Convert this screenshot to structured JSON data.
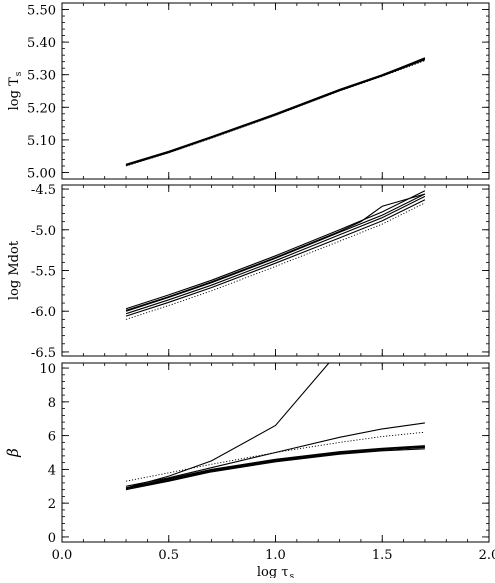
{
  "chart_data": [
    {
      "type": "line",
      "ylabel": "log T",
      "ylabel_sub": "s",
      "xlim": [
        0.0,
        2.0
      ],
      "ylim": [
        4.98,
        5.52
      ],
      "yticks": [
        5.0,
        5.1,
        5.2,
        5.3,
        5.4,
        5.5
      ],
      "ytick_labels": [
        "5.00",
        "5.10",
        "5.20",
        "5.30",
        "5.40",
        "5.50"
      ],
      "series": [
        {
          "style": "solid",
          "x": [
            0.3,
            0.5,
            0.7,
            1.0,
            1.3,
            1.5,
            1.7
          ],
          "y": [
            5.025,
            5.065,
            5.11,
            5.18,
            5.255,
            5.3,
            5.35
          ]
        },
        {
          "style": "solid",
          "x": [
            0.3,
            0.5,
            0.7,
            1.0,
            1.3,
            1.5,
            1.7
          ],
          "y": [
            5.023,
            5.063,
            5.108,
            5.178,
            5.253,
            5.298,
            5.348
          ]
        },
        {
          "style": "solid",
          "x": [
            0.3,
            0.5,
            0.7,
            1.0,
            1.3,
            1.5,
            1.7
          ],
          "y": [
            5.021,
            5.061,
            5.106,
            5.176,
            5.251,
            5.296,
            5.346
          ]
        },
        {
          "style": "solid",
          "x": [
            0.3,
            0.5,
            0.7,
            1.0,
            1.3,
            1.5,
            1.7
          ],
          "y": [
            5.024,
            5.064,
            5.109,
            5.179,
            5.254,
            5.299,
            5.352
          ]
        },
        {
          "style": "dotted",
          "x": [
            0.3,
            0.5,
            0.7,
            1.0,
            1.3,
            1.5,
            1.7
          ],
          "y": [
            5.02,
            5.06,
            5.105,
            5.175,
            5.25,
            5.295,
            5.343
          ]
        }
      ]
    },
    {
      "type": "line",
      "ylabel": "log Mdot",
      "xlim": [
        0.0,
        2.0
      ],
      "ylim": [
        -6.55,
        -4.45
      ],
      "yticks": [
        -6.5,
        -6.0,
        -5.5,
        -5.0,
        -4.5
      ],
      "ytick_labels": [
        "-6.5",
        "-6.0",
        "-5.5",
        "-5.0",
        "-4.5"
      ],
      "series": [
        {
          "style": "solid",
          "x": [
            0.3,
            0.5,
            0.7,
            1.0,
            1.3,
            1.5,
            1.7
          ],
          "y": [
            -5.97,
            -5.8,
            -5.62,
            -5.32,
            -5.0,
            -4.78,
            -4.52
          ]
        },
        {
          "style": "solid",
          "x": [
            0.3,
            0.5,
            0.7,
            1.0,
            1.3,
            1.5,
            1.7
          ],
          "y": [
            -6.0,
            -5.83,
            -5.65,
            -5.35,
            -5.03,
            -4.82,
            -4.56
          ]
        },
        {
          "style": "solid",
          "x": [
            0.3,
            0.5,
            0.7,
            1.0,
            1.3,
            1.5,
            1.7
          ],
          "y": [
            -6.03,
            -5.86,
            -5.68,
            -5.38,
            -5.06,
            -4.85,
            -4.59
          ]
        },
        {
          "style": "solid",
          "x": [
            0.3,
            0.5,
            0.7,
            1.0,
            1.3,
            1.5,
            1.7
          ],
          "y": [
            -6.06,
            -5.89,
            -5.71,
            -5.41,
            -5.1,
            -4.89,
            -4.63
          ]
        },
        {
          "style": "solid",
          "x": [
            0.3,
            0.5,
            0.7,
            1.0,
            1.3,
            1.4,
            1.5,
            1.7
          ],
          "y": [
            -5.99,
            -5.82,
            -5.64,
            -5.34,
            -5.02,
            -4.9,
            -4.71,
            -4.56
          ]
        },
        {
          "style": "dotted",
          "x": [
            0.3,
            0.5,
            0.7,
            1.0,
            1.3,
            1.5,
            1.7
          ],
          "y": [
            -6.1,
            -5.93,
            -5.75,
            -5.45,
            -5.14,
            -4.93,
            -4.67
          ]
        }
      ]
    },
    {
      "type": "line",
      "ylabel": "β",
      "xlabel": "log  τ",
      "xlabel_sub": "s",
      "xlim": [
        0.0,
        2.0
      ],
      "ylim": [
        -0.3,
        10.3
      ],
      "yticks": [
        0,
        2,
        4,
        6,
        8,
        10
      ],
      "ytick_labels": [
        "0",
        "2",
        "4",
        "6",
        "8",
        "10"
      ],
      "xticks": [
        0.0,
        0.5,
        1.0,
        1.5,
        2.0
      ],
      "xtick_labels": [
        "0.0",
        "0.5",
        "1.0",
        "1.5",
        "2.0"
      ],
      "series": [
        {
          "style": "solid",
          "x": [
            0.3,
            0.5,
            0.7,
            1.0,
            1.25
          ],
          "y": [
            2.9,
            3.6,
            4.5,
            6.6,
            10.3
          ]
        },
        {
          "style": "solid",
          "x": [
            0.3,
            0.5,
            0.7,
            1.0,
            1.3,
            1.5,
            1.7
          ],
          "y": [
            3.0,
            3.5,
            4.1,
            5.0,
            5.9,
            6.4,
            6.75
          ]
        },
        {
          "style": "dotted",
          "x": [
            0.3,
            0.5,
            0.7,
            1.0,
            1.3,
            1.5,
            1.7
          ],
          "y": [
            3.3,
            3.8,
            4.3,
            5.0,
            5.6,
            5.95,
            6.2
          ]
        },
        {
          "style": "solid",
          "x": [
            0.3,
            0.5,
            0.7,
            1.0,
            1.3,
            1.5,
            1.7
          ],
          "y": [
            2.9,
            3.4,
            3.95,
            4.55,
            5.0,
            5.2,
            5.35
          ]
        },
        {
          "style": "solid",
          "x": [
            0.3,
            0.5,
            0.7,
            1.0,
            1.3,
            1.5,
            1.7
          ],
          "y": [
            2.85,
            3.35,
            3.9,
            4.5,
            4.95,
            5.15,
            5.3
          ]
        },
        {
          "style": "solid",
          "x": [
            0.3,
            0.5,
            0.7,
            1.0,
            1.3,
            1.5,
            1.7
          ],
          "y": [
            2.8,
            3.3,
            3.85,
            4.45,
            4.9,
            5.1,
            5.22
          ]
        },
        {
          "style": "solid",
          "x": [
            0.3,
            0.5,
            0.7,
            1.0,
            1.3,
            1.5,
            1.7
          ],
          "y": [
            2.9,
            3.45,
            4.0,
            4.6,
            5.05,
            5.25,
            5.4
          ]
        }
      ]
    }
  ]
}
